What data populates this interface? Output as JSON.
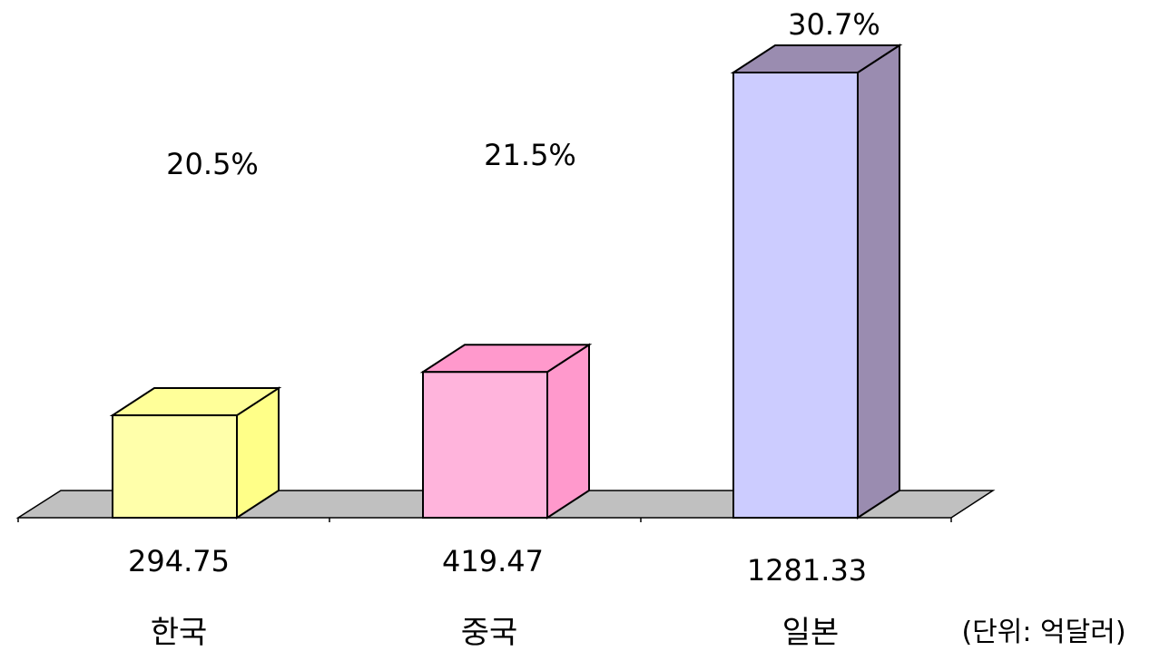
{
  "chart_data": {
    "type": "bar",
    "style": "3d-column",
    "categories": [
      "한국",
      "중국",
      "일본"
    ],
    "values": [
      294.75,
      419.47,
      1281.33
    ],
    "percent_labels": [
      "20.5%",
      "21.5%",
      "30.7%"
    ],
    "value_labels": [
      "294.75",
      "419.47",
      "1281.33"
    ],
    "unit_label": "(단위: 억달러)",
    "ylim": [
      0,
      1281.33
    ],
    "grid": false,
    "legend": "none"
  },
  "colors": {
    "bars": [
      {
        "front": "#FFFFAA",
        "side": "#FFFF88",
        "top": "#FFFF99"
      },
      {
        "front": "#FFB4DC",
        "side": "#FF99CC",
        "top": "#FF99CC"
      },
      {
        "front": "#CCCCFF",
        "side": "#9A8CB0",
        "top": "#9A8CB0"
      }
    ],
    "floor": "#C0C0C0",
    "outline": "#000000"
  }
}
